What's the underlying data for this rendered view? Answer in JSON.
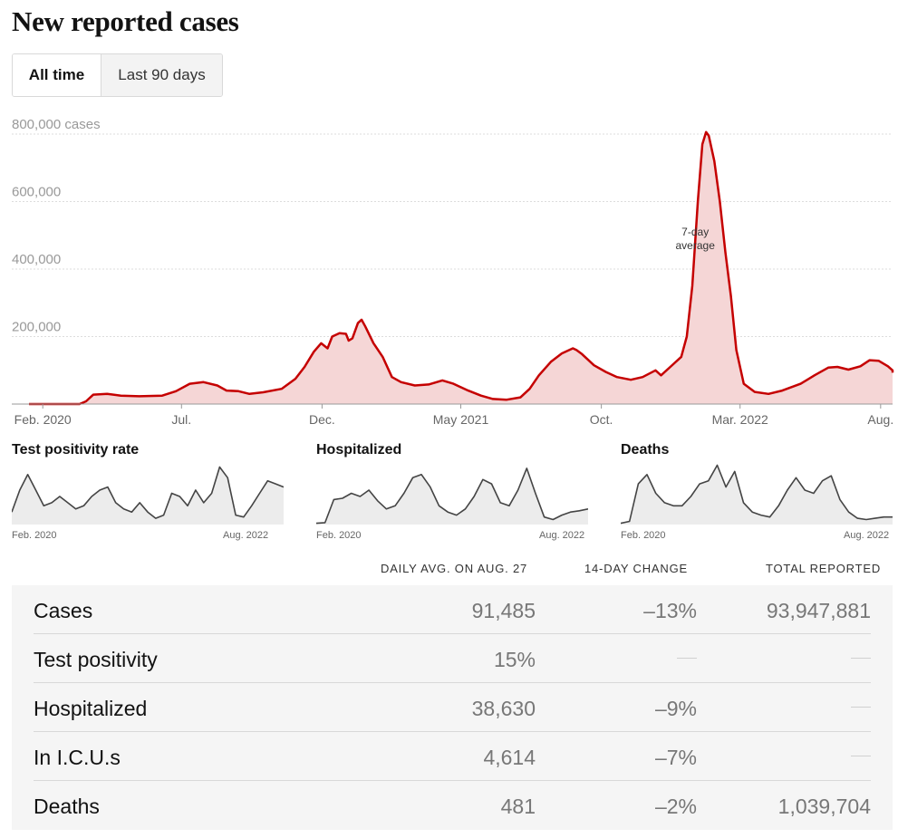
{
  "title": "New reported cases",
  "toggle": {
    "all_time": "All time",
    "last_90": "Last 90 days"
  },
  "chart_data": {
    "type": "area",
    "ylabel_unit": "cases",
    "y_ticks": [
      {
        "value": 200000,
        "label": "200,000"
      },
      {
        "value": 400000,
        "label": "400,000"
      },
      {
        "value": 600000,
        "label": "600,000"
      },
      {
        "value": 800000,
        "label": "800,000 cases"
      }
    ],
    "ylim": [
      0,
      800000
    ],
    "x_range_days": [
      0,
      940
    ],
    "x_ticks": [
      {
        "day": 15,
        "label": "Feb. 2020"
      },
      {
        "day": 166,
        "label": "Jul."
      },
      {
        "day": 319,
        "label": "Dec."
      },
      {
        "day": 470,
        "label": "May 2021"
      },
      {
        "day": 623,
        "label": "Oct."
      },
      {
        "day": 774,
        "label": "Mar. 2022"
      },
      {
        "day": 927,
        "label": "Aug."
      }
    ],
    "annotation": {
      "line1": "7-day",
      "line2": "average"
    },
    "series": [
      {
        "name": "7-day average",
        "color": "#c50000",
        "fill": "#f5d6d6",
        "points": [
          [
            0,
            0
          ],
          [
            55,
            0
          ],
          [
            62,
            8000
          ],
          [
            70,
            28000
          ],
          [
            85,
            30000
          ],
          [
            100,
            25000
          ],
          [
            120,
            23000
          ],
          [
            145,
            25000
          ],
          [
            160,
            38000
          ],
          [
            175,
            60000
          ],
          [
            190,
            65000
          ],
          [
            205,
            55000
          ],
          [
            215,
            40000
          ],
          [
            228,
            38000
          ],
          [
            240,
            30000
          ],
          [
            255,
            35000
          ],
          [
            275,
            45000
          ],
          [
            290,
            75000
          ],
          [
            300,
            110000
          ],
          [
            310,
            155000
          ],
          [
            318,
            180000
          ],
          [
            325,
            165000
          ],
          [
            330,
            200000
          ],
          [
            338,
            210000
          ],
          [
            345,
            208000
          ],
          [
            348,
            188000
          ],
          [
            352,
            195000
          ],
          [
            358,
            240000
          ],
          [
            362,
            250000
          ],
          [
            366,
            230000
          ],
          [
            375,
            180000
          ],
          [
            385,
            140000
          ],
          [
            395,
            80000
          ],
          [
            405,
            65000
          ],
          [
            420,
            55000
          ],
          [
            435,
            58000
          ],
          [
            450,
            70000
          ],
          [
            462,
            60000
          ],
          [
            478,
            40000
          ],
          [
            492,
            25000
          ],
          [
            505,
            15000
          ],
          [
            520,
            13000
          ],
          [
            535,
            20000
          ],
          [
            545,
            45000
          ],
          [
            555,
            85000
          ],
          [
            568,
            125000
          ],
          [
            580,
            150000
          ],
          [
            592,
            165000
          ],
          [
            596,
            160000
          ],
          [
            602,
            148000
          ],
          [
            615,
            115000
          ],
          [
            628,
            95000
          ],
          [
            640,
            80000
          ],
          [
            655,
            72000
          ],
          [
            668,
            80000
          ],
          [
            682,
            100000
          ],
          [
            688,
            85000
          ],
          [
            698,
            110000
          ],
          [
            710,
            140000
          ],
          [
            716,
            200000
          ],
          [
            722,
            350000
          ],
          [
            728,
            600000
          ],
          [
            733,
            770000
          ],
          [
            737,
            806000
          ],
          [
            740,
            795000
          ],
          [
            746,
            720000
          ],
          [
            752,
            600000
          ],
          [
            758,
            450000
          ],
          [
            764,
            320000
          ],
          [
            770,
            160000
          ],
          [
            778,
            60000
          ],
          [
            790,
            36000
          ],
          [
            805,
            30000
          ],
          [
            820,
            40000
          ],
          [
            840,
            60000
          ],
          [
            855,
            85000
          ],
          [
            870,
            108000
          ],
          [
            880,
            110000
          ],
          [
            892,
            102000
          ],
          [
            905,
            112000
          ],
          [
            915,
            130000
          ],
          [
            925,
            128000
          ],
          [
            935,
            112000
          ],
          [
            945,
            100000
          ],
          [
            955,
            93000
          ]
        ]
      }
    ],
    "mini_charts": [
      {
        "title": "Test positivity rate",
        "start_label": "Feb. 2020",
        "end_label": "Aug. 2022",
        "values": [
          0.2,
          0.55,
          0.8,
          0.55,
          0.3,
          0.35,
          0.45,
          0.35,
          0.25,
          0.3,
          0.45,
          0.55,
          0.6,
          0.35,
          0.25,
          0.2,
          0.35,
          0.2,
          0.1,
          0.15,
          0.5,
          0.45,
          0.3,
          0.55,
          0.35,
          0.5,
          0.92,
          0.75,
          0.15,
          0.12,
          0.3,
          0.5,
          0.7,
          0.65,
          0.6
        ]
      },
      {
        "title": "Hospitalized",
        "start_label": "Feb. 2020",
        "end_label": "Aug. 2022",
        "values": [
          0.02,
          0.03,
          0.4,
          0.42,
          0.5,
          0.45,
          0.55,
          0.38,
          0.25,
          0.3,
          0.5,
          0.75,
          0.8,
          0.6,
          0.3,
          0.2,
          0.15,
          0.25,
          0.45,
          0.72,
          0.65,
          0.35,
          0.3,
          0.55,
          0.9,
          0.5,
          0.12,
          0.08,
          0.15,
          0.2,
          0.22,
          0.25
        ]
      },
      {
        "title": "Deaths",
        "start_label": "Feb. 2020",
        "end_label": "Aug. 2022",
        "values": [
          0.02,
          0.05,
          0.65,
          0.8,
          0.5,
          0.35,
          0.3,
          0.3,
          0.45,
          0.65,
          0.7,
          0.95,
          0.6,
          0.85,
          0.35,
          0.2,
          0.15,
          0.12,
          0.3,
          0.55,
          0.75,
          0.55,
          0.5,
          0.7,
          0.78,
          0.4,
          0.2,
          0.1,
          0.08,
          0.1,
          0.12,
          0.12
        ]
      }
    ]
  },
  "table": {
    "headers": {
      "daily": "DAILY AVG. ON AUG. 27",
      "change": "14-DAY CHANGE",
      "total": "TOTAL REPORTED"
    },
    "rows": [
      {
        "metric": "Cases",
        "daily": "91,485",
        "change": "–13%",
        "total": "93,947,881"
      },
      {
        "metric": "Test positivity",
        "daily": "15%",
        "change": "",
        "total": ""
      },
      {
        "metric": "Hospitalized",
        "daily": "38,630",
        "change": "–9%",
        "total": ""
      },
      {
        "metric": "In I.C.U.s",
        "daily": "4,614",
        "change": "–7%",
        "total": ""
      },
      {
        "metric": "Deaths",
        "daily": "481",
        "change": "–2%",
        "total": "1,039,704"
      }
    ]
  }
}
